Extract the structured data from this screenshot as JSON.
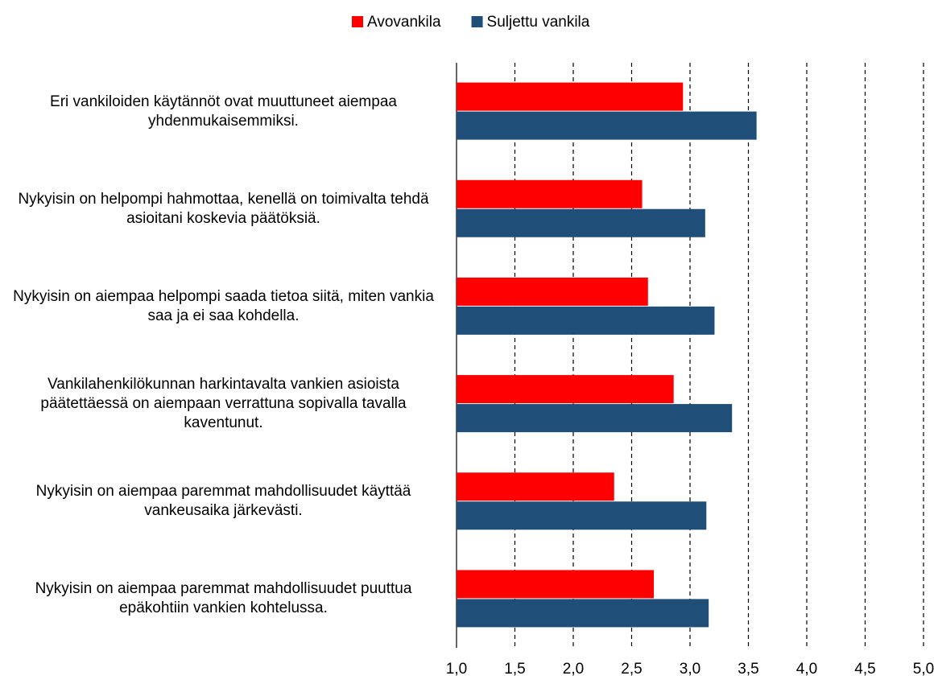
{
  "chart_data": {
    "type": "bar",
    "orientation": "horizontal",
    "categories": [
      "Eri vankiloiden käytännöt ovat muuttuneet aiempaa yhdenmukaisemmiksi.",
      "Nykyisin on helpompi hahmottaa, kenellä on toimivalta tehdä asioitani koskevia päätöksiä.",
      "Nykyisin on aiempaa helpompi saada tietoa siitä, miten vankia saa ja ei saa kohdella.",
      "Vankilahenkilökunnan harkintavalta vankien asioista päätettäessä on aiempaan verrattuna sopivalla tavalla kaventunut.",
      "Nykyisin on aiempaa paremmat mahdollisuudet käyttää vankeusaika järkevästi.",
      "Nykyisin on aiempaa paremmat mahdollisuudet puuttua epäkohtiin vankien kohtelussa."
    ],
    "series": [
      {
        "name": "Avovankila",
        "color": "#ff0000",
        "values": [
          2.94,
          2.59,
          2.64,
          2.86,
          2.35,
          2.69
        ]
      },
      {
        "name": "Suljettu vankila",
        "color": "#1f4e79",
        "values": [
          3.57,
          3.13,
          3.21,
          3.36,
          3.14,
          3.16
        ]
      }
    ],
    "xlim": [
      1.0,
      5.0
    ],
    "xticks": [
      {
        "value": 1.0,
        "label": "1,0"
      },
      {
        "value": 1.5,
        "label": "1,5"
      },
      {
        "value": 2.0,
        "label": "2,0"
      },
      {
        "value": 2.5,
        "label": "2,5"
      },
      {
        "value": 3.0,
        "label": "3,0"
      },
      {
        "value": 3.5,
        "label": "3,5"
      },
      {
        "value": 4.0,
        "label": "4,0"
      },
      {
        "value": 4.5,
        "label": "4,5"
      },
      {
        "value": 5.0,
        "label": "5,0"
      }
    ],
    "grid": true,
    "legend": "top"
  }
}
